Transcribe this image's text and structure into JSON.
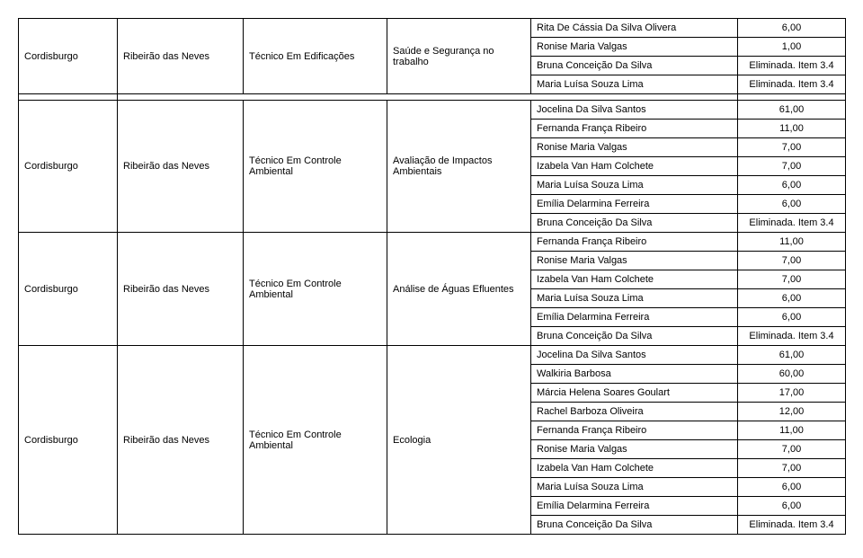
{
  "groups": [
    {
      "col_a": "Cordisburgo",
      "col_b": "Ribeirão das Neves",
      "col_c": "Técnico Em Edificações",
      "col_d": "Saúde e Segurança no trabalho",
      "rows": [
        {
          "name": "Rita De Cássia Da Silva Olivera",
          "score": "6,00"
        },
        {
          "name": "Ronise Maria Valgas",
          "score": "1,00"
        },
        {
          "name": "Bruna Conceição Da Silva",
          "score": "Eliminada. Item 3.4"
        },
        {
          "name": "Maria Luísa Souza Lima",
          "score": "Eliminada. Item 3.4"
        }
      ],
      "spacer_after": true
    },
    {
      "col_a": "Cordisburgo",
      "col_b": "Ribeirão das Neves",
      "col_c": "Técnico Em Controle Ambiental",
      "col_d": "Avaliação de Impactos Ambientais",
      "rows": [
        {
          "name": "Jocelina Da Silva Santos",
          "score": "61,00"
        },
        {
          "name": "Fernanda França Ribeiro",
          "score": "11,00"
        },
        {
          "name": "Ronise Maria Valgas",
          "score": "7,00"
        },
        {
          "name": "Izabela Van Ham Colchete",
          "score": "7,00"
        },
        {
          "name": "Maria Luísa Souza Lima",
          "score": "6,00"
        },
        {
          "name": "Emília Delarmina Ferreira",
          "score": "6,00"
        },
        {
          "name": "Bruna Conceição Da Silva",
          "score": "Eliminada. Item 3.4"
        }
      ],
      "spacer_after": false
    },
    {
      "col_a": "Cordisburgo",
      "col_b": "Ribeirão das Neves",
      "col_c": "Técnico Em Controle Ambiental",
      "col_d": "Análise de Águas Efluentes",
      "rows": [
        {
          "name": "Fernanda França Ribeiro",
          "score": "11,00"
        },
        {
          "name": "Ronise Maria Valgas",
          "score": "7,00"
        },
        {
          "name": "Izabela Van Ham Colchete",
          "score": "7,00"
        },
        {
          "name": "Maria Luísa Souza Lima",
          "score": "6,00"
        },
        {
          "name": "Emília Delarmina Ferreira",
          "score": "6,00"
        },
        {
          "name": "Bruna Conceição Da Silva",
          "score": "Eliminada. Item 3.4"
        }
      ],
      "spacer_after": false
    },
    {
      "col_a": "Cordisburgo",
      "col_b": "Ribeirão das Neves",
      "col_c": "Técnico Em Controle Ambiental",
      "col_d": "Ecologia",
      "rows": [
        {
          "name": "Jocelina Da Silva Santos",
          "score": "61,00"
        },
        {
          "name": "Walkiria Barbosa",
          "score": "60,00"
        },
        {
          "name": "Márcia Helena Soares Goulart",
          "score": "17,00"
        },
        {
          "name": "Rachel Barboza Oliveira",
          "score": "12,00"
        },
        {
          "name": "Fernanda França Ribeiro",
          "score": "11,00"
        },
        {
          "name": "Ronise Maria Valgas",
          "score": "7,00"
        },
        {
          "name": "Izabela Van Ham Colchete",
          "score": "7,00"
        },
        {
          "name": "Maria Luísa Souza Lima",
          "score": "6,00"
        },
        {
          "name": "Emília Delarmina Ferreira",
          "score": "6,00"
        },
        {
          "name": "Bruna Conceição Da Silva",
          "score": "Eliminada. Item 3.4"
        }
      ],
      "spacer_after": false
    }
  ]
}
